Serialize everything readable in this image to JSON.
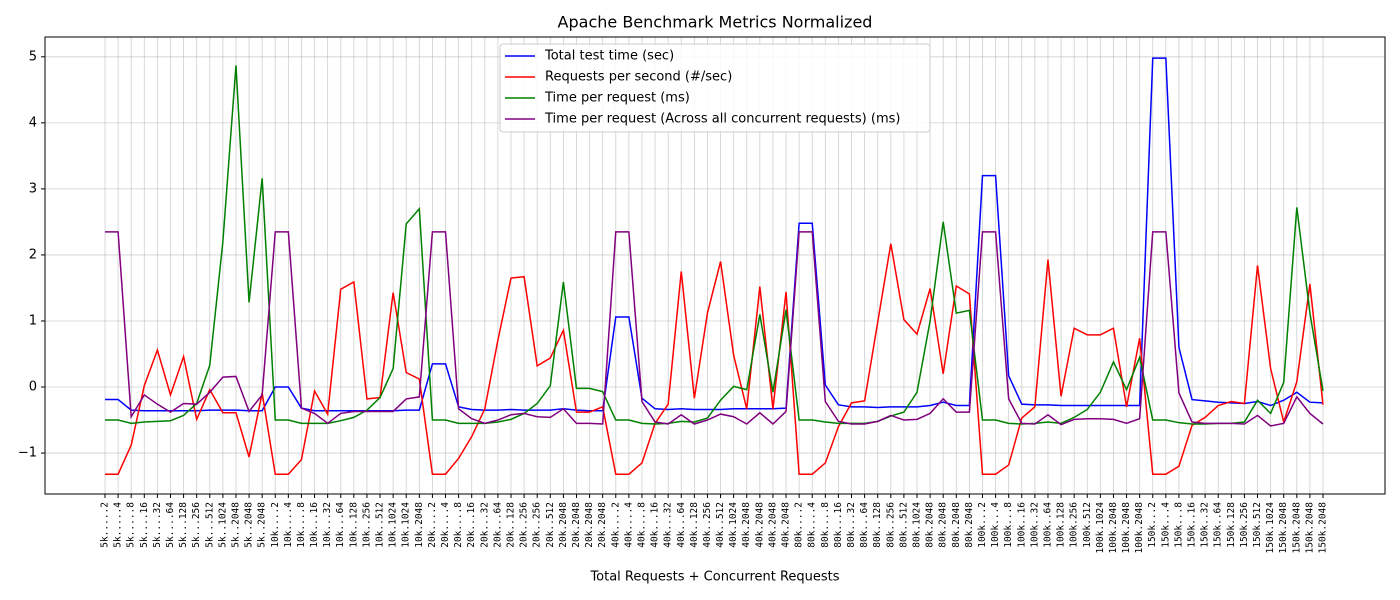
{
  "chart_data": {
    "type": "line",
    "title": "Apache Benchmark Metrics Normalized",
    "x_label": "Total Requests + Concurrent Requests",
    "categories": [
      "5k.....2",
      "5k.....4",
      "5k.....8",
      "5k....16",
      "5k....32",
      "5k....64",
      "5k...128",
      "5k...256",
      "5k...512",
      "5k..1024",
      "5k..2048",
      "5k..2048",
      "5k..2048",
      "10k....2",
      "10k....4",
      "10k....8",
      "10k...16",
      "10k...32",
      "10k...64",
      "10k..128",
      "10k..256",
      "10k..512",
      "10k.1024",
      "10k.1024",
      "10k.2048",
      "20k....2",
      "20k....4",
      "20k....8",
      "20k...16",
      "20k...32",
      "20k...64",
      "20k..128",
      "20k..256",
      "20k..256",
      "20k..512",
      "20k.2048",
      "20k.2048",
      "20k.2048",
      "20k.2048",
      "40k....2",
      "40k....4",
      "40k....8",
      "40k...16",
      "40k...32",
      "40k...64",
      "40k..128",
      "40k..256",
      "40k..512",
      "40k.1024",
      "40k.2048",
      "40k.2048",
      "40k.2048",
      "40k.2048",
      "80k....2",
      "80k....4",
      "80k....8",
      "80k...16",
      "80k...32",
      "80k...64",
      "80k..128",
      "80k..256",
      "80k..512",
      "80k.1024",
      "80k.2048",
      "80k.2048",
      "80k.2048",
      "80k.2048",
      "100k...2",
      "100k...4",
      "100k...8",
      "100k..16",
      "100k..32",
      "100k..64",
      "100k.128",
      "100k.256",
      "100k.512",
      "100k.1024",
      "100k.2048",
      "100k.2048",
      "100k.2048",
      "150k...2",
      "150k...4",
      "150k...8",
      "150k..16",
      "150k..32",
      "150k..64",
      "150k.128",
      "150k.256",
      "150k.512",
      "150k.1024",
      "150k.2048",
      "150k.2048",
      "150k.2048",
      "150k.2048"
    ],
    "series": [
      {
        "name": "Total test time (sec)",
        "color": "#0000ff",
        "values": [
          -0.19,
          -0.19,
          -0.35,
          -0.36,
          -0.36,
          -0.36,
          -0.36,
          -0.36,
          -0.35,
          -0.35,
          -0.35,
          -0.36,
          -0.36,
          0,
          0,
          -0.32,
          -0.36,
          -0.36,
          -0.36,
          -0.36,
          -0.36,
          -0.36,
          -0.36,
          -0.35,
          -0.35,
          0.35,
          0.35,
          -0.3,
          -0.34,
          -0.35,
          -0.35,
          -0.34,
          -0.35,
          -0.35,
          -0.35,
          -0.33,
          -0.35,
          -0.36,
          -0.36,
          1.06,
          1.06,
          -0.17,
          -0.33,
          -0.34,
          -0.33,
          -0.34,
          -0.34,
          -0.34,
          -0.33,
          -0.33,
          -0.33,
          -0.33,
          -0.32,
          2.48,
          2.48,
          0.03,
          -0.27,
          -0.3,
          -0.3,
          -0.31,
          -0.3,
          -0.3,
          -0.3,
          -0.28,
          -0.23,
          -0.28,
          -0.28,
          3.2,
          3.2,
          0.17,
          -0.26,
          -0.27,
          -0.27,
          -0.28,
          -0.28,
          -0.28,
          -0.28,
          -0.28,
          -0.28,
          -0.28,
          4.98,
          4.98,
          0.6,
          -0.19,
          -0.21,
          -0.23,
          -0.24,
          -0.25,
          -0.22,
          -0.28,
          -0.2,
          -0.08,
          -0.23,
          -0.24
        ]
      },
      {
        "name": "Requests per second (#/sec)",
        "color": "#ff0000",
        "values": [
          -1.32,
          -1.32,
          -0.88,
          0.02,
          0.56,
          -0.12,
          0.46,
          -0.49,
          -0.04,
          -0.39,
          -0.39,
          -1.06,
          -0.09,
          -1.32,
          -1.32,
          -1.1,
          -0.06,
          -0.41,
          1.48,
          1.59,
          -0.18,
          -0.16,
          1.43,
          0.22,
          0.12,
          -1.32,
          -1.32,
          -1.08,
          -0.75,
          -0.33,
          0.71,
          1.65,
          1.67,
          0.32,
          0.44,
          0.86,
          -0.38,
          -0.38,
          -0.3,
          -1.32,
          -1.32,
          -1.15,
          -0.55,
          -0.26,
          1.75,
          -0.17,
          1.12,
          1.9,
          0.48,
          -0.33,
          1.52,
          -0.33,
          1.44,
          -1.32,
          -1.32,
          -1.15,
          -0.6,
          -0.24,
          -0.21,
          0.98,
          2.17,
          1.02,
          0.8,
          1.49,
          0.2,
          1.53,
          1.41,
          -1.32,
          -1.32,
          -1.18,
          -0.47,
          -0.3,
          1.93,
          -0.14,
          0.89,
          0.79,
          0.79,
          0.89,
          -0.3,
          0.74,
          -1.32,
          -1.32,
          -1.2,
          -0.58,
          -0.46,
          -0.28,
          -0.22,
          -0.25,
          1.84,
          0.28,
          -0.53,
          0.08,
          1.56,
          -0.27
        ]
      },
      {
        "name": "Time per request (ms)",
        "color": "#008000",
        "values": [
          -0.5,
          -0.5,
          -0.55,
          -0.53,
          -0.52,
          -0.51,
          -0.43,
          -0.25,
          0.33,
          2.2,
          4.87,
          1.28,
          3.16,
          -0.5,
          -0.5,
          -0.55,
          -0.55,
          -0.55,
          -0.51,
          -0.46,
          -0.35,
          -0.16,
          0.28,
          2.47,
          2.7,
          -0.5,
          -0.5,
          -0.55,
          -0.55,
          -0.55,
          -0.53,
          -0.49,
          -0.4,
          -0.25,
          0.02,
          1.59,
          -0.02,
          -0.02,
          -0.07,
          -0.5,
          -0.5,
          -0.55,
          -0.56,
          -0.55,
          -0.52,
          -0.53,
          -0.47,
          -0.2,
          0.01,
          -0.04,
          1.1,
          -0.08,
          1.17,
          -0.5,
          -0.5,
          -0.53,
          -0.55,
          -0.55,
          -0.55,
          -0.52,
          -0.44,
          -0.38,
          -0.08,
          1.0,
          2.5,
          1.12,
          1.16,
          -0.5,
          -0.5,
          -0.55,
          -0.56,
          -0.55,
          -0.53,
          -0.55,
          -0.46,
          -0.34,
          -0.08,
          0.38,
          -0.04,
          0.45,
          -0.5,
          -0.5,
          -0.54,
          -0.56,
          -0.56,
          -0.55,
          -0.55,
          -0.53,
          -0.2,
          -0.4,
          0.07,
          2.72,
          1.12,
          -0.06
        ]
      },
      {
        "name": "Time per request (Across all concurrent requests) (ms)",
        "color": "#800080",
        "values": [
          2.35,
          2.35,
          -0.45,
          -0.12,
          -0.26,
          -0.38,
          -0.25,
          -0.26,
          -0.08,
          0.15,
          0.16,
          -0.37,
          -0.12,
          2.35,
          2.35,
          -0.32,
          -0.4,
          -0.55,
          -0.4,
          -0.37,
          -0.37,
          -0.37,
          -0.37,
          -0.18,
          -0.15,
          2.35,
          2.35,
          -0.33,
          -0.48,
          -0.55,
          -0.5,
          -0.42,
          -0.4,
          -0.45,
          -0.46,
          -0.33,
          -0.55,
          -0.55,
          -0.56,
          2.35,
          2.35,
          -0.22,
          -0.53,
          -0.56,
          -0.42,
          -0.56,
          -0.5,
          -0.41,
          -0.45,
          -0.56,
          -0.39,
          -0.56,
          -0.37,
          2.35,
          2.35,
          -0.22,
          -0.52,
          -0.56,
          -0.56,
          -0.52,
          -0.43,
          -0.5,
          -0.49,
          -0.4,
          -0.18,
          -0.38,
          -0.38,
          2.35,
          2.35,
          -0.18,
          -0.55,
          -0.56,
          -0.42,
          -0.57,
          -0.49,
          -0.48,
          -0.48,
          -0.49,
          -0.55,
          -0.48,
          2.35,
          2.35,
          -0.09,
          -0.53,
          -0.55,
          -0.55,
          -0.55,
          -0.56,
          -0.43,
          -0.59,
          -0.55,
          -0.15,
          -0.4,
          -0.56
        ]
      }
    ],
    "ylim": [
      -1.62,
      5.3
    ],
    "yticks": [
      {
        "value": -1,
        "label": "−1"
      },
      0,
      1,
      2,
      3,
      4,
      5
    ],
    "grid": true,
    "legend": "upper center"
  }
}
